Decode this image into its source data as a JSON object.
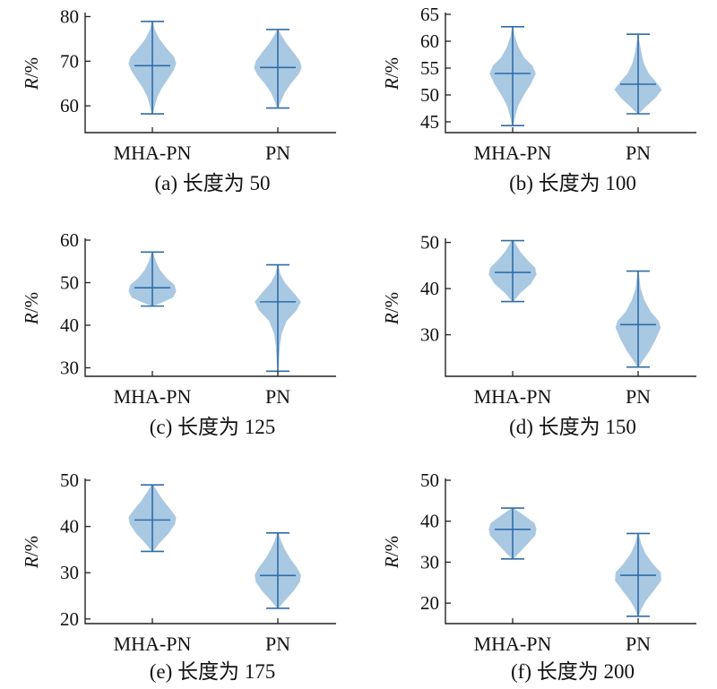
{
  "chart_data": [
    {
      "type": "violin",
      "caption": "(a) 长度为 50",
      "ylabel_italic": "R",
      "ylabel_rest": "/%",
      "categories": [
        "MHA-PN",
        "PN"
      ],
      "ylim": [
        54,
        80.5
      ],
      "yticks": [
        60,
        70,
        80
      ],
      "violins": [
        {
          "min": 58.2,
          "max": 78.9,
          "median": 69.0,
          "profile": [
            [
              58.2,
              0.02
            ],
            [
              60,
              0.1
            ],
            [
              62,
              0.2
            ],
            [
              64,
              0.38
            ],
            [
              66,
              0.62
            ],
            [
              68,
              0.85
            ],
            [
              69.5,
              0.95
            ],
            [
              71,
              0.86
            ],
            [
              73,
              0.55
            ],
            [
              75,
              0.28
            ],
            [
              77,
              0.1
            ],
            [
              78.9,
              0.02
            ]
          ]
        },
        {
          "min": 59.5,
          "max": 77.1,
          "median": 68.6,
          "profile": [
            [
              59.5,
              0.02
            ],
            [
              61,
              0.12
            ],
            [
              63,
              0.28
            ],
            [
              65,
              0.52
            ],
            [
              67,
              0.82
            ],
            [
              68.5,
              0.95
            ],
            [
              70,
              0.88
            ],
            [
              72,
              0.62
            ],
            [
              74,
              0.34
            ],
            [
              76,
              0.12
            ],
            [
              77.1,
              0.02
            ]
          ]
        }
      ]
    },
    {
      "type": "violin",
      "caption": "(b) 长度为 100",
      "ylabel_italic": "R",
      "ylabel_rest": "/%",
      "categories": [
        "MHA-PN",
        "PN"
      ],
      "ylim": [
        43,
        65
      ],
      "yticks": [
        45,
        50,
        55,
        60,
        65
      ],
      "violins": [
        {
          "min": 44.3,
          "max": 62.7,
          "median": 54.0,
          "profile": [
            [
              44.3,
              0.02
            ],
            [
              46,
              0.1
            ],
            [
              48,
              0.22
            ],
            [
              50,
              0.45
            ],
            [
              52,
              0.72
            ],
            [
              54,
              0.92
            ],
            [
              55.5,
              0.78
            ],
            [
              57,
              0.45
            ],
            [
              59,
              0.22
            ],
            [
              61,
              0.08
            ],
            [
              62.7,
              0.02
            ]
          ]
        },
        {
          "min": 46.5,
          "max": 61.3,
          "median": 52.0,
          "profile": [
            [
              46.5,
              0.02
            ],
            [
              48,
              0.35
            ],
            [
              49.5,
              0.7
            ],
            [
              51,
              0.95
            ],
            [
              52.5,
              0.7
            ],
            [
              54,
              0.42
            ],
            [
              56,
              0.22
            ],
            [
              58,
              0.12
            ],
            [
              60,
              0.05
            ],
            [
              61.3,
              0.02
            ]
          ]
        }
      ]
    },
    {
      "type": "violin",
      "caption": "(c) 长度为 125",
      "ylabel_italic": "R",
      "ylabel_rest": "/%",
      "categories": [
        "MHA-PN",
        "PN"
      ],
      "ylim": [
        28,
        60
      ],
      "yticks": [
        30,
        40,
        50,
        60
      ],
      "violins": [
        {
          "min": 44.5,
          "max": 57.2,
          "median": 48.8,
          "profile": [
            [
              44.5,
              0.02
            ],
            [
              45.5,
              0.45
            ],
            [
              46.5,
              0.82
            ],
            [
              48,
              0.95
            ],
            [
              49.5,
              0.88
            ],
            [
              51,
              0.58
            ],
            [
              53,
              0.3
            ],
            [
              55,
              0.14
            ],
            [
              57.2,
              0.02
            ]
          ]
        },
        {
          "min": 29.2,
          "max": 54.2,
          "median": 45.5,
          "profile": [
            [
              29.2,
              0.02
            ],
            [
              32,
              0.05
            ],
            [
              35,
              0.08
            ],
            [
              38,
              0.15
            ],
            [
              41,
              0.35
            ],
            [
              43.5,
              0.75
            ],
            [
              45.5,
              0.92
            ],
            [
              47.5,
              0.65
            ],
            [
              50,
              0.28
            ],
            [
              52,
              0.1
            ],
            [
              54.2,
              0.02
            ]
          ]
        }
      ]
    },
    {
      "type": "violin",
      "caption": "(d) 长度为 150",
      "ylabel_italic": "R",
      "ylabel_rest": "/%",
      "categories": [
        "MHA-PN",
        "PN"
      ],
      "ylim": [
        21,
        50.5
      ],
      "yticks": [
        30,
        40,
        50
      ],
      "violins": [
        {
          "min": 37.2,
          "max": 50.4,
          "median": 43.5,
          "profile": [
            [
              37.2,
              0.02
            ],
            [
              39,
              0.3
            ],
            [
              41,
              0.72
            ],
            [
              43,
              0.95
            ],
            [
              44.5,
              0.9
            ],
            [
              46,
              0.62
            ],
            [
              48,
              0.3
            ],
            [
              50.4,
              0.04
            ]
          ]
        },
        {
          "min": 23.0,
          "max": 43.8,
          "median": 32.2,
          "profile": [
            [
              23.0,
              0.02
            ],
            [
              24.5,
              0.2
            ],
            [
              26.5,
              0.45
            ],
            [
              29,
              0.7
            ],
            [
              31.5,
              0.9
            ],
            [
              33,
              0.82
            ],
            [
              35,
              0.5
            ],
            [
              37.5,
              0.25
            ],
            [
              40,
              0.1
            ],
            [
              43.8,
              0.02
            ]
          ]
        }
      ]
    },
    {
      "type": "violin",
      "caption": "(e) 长度为 175",
      "ylabel_italic": "R",
      "ylabel_rest": "/%",
      "categories": [
        "MHA-PN",
        "PN"
      ],
      "ylim": [
        19,
        50
      ],
      "yticks": [
        20,
        30,
        40,
        50
      ],
      "violins": [
        {
          "min": 34.6,
          "max": 49.0,
          "median": 41.4,
          "profile": [
            [
              34.6,
              0.02
            ],
            [
              36.5,
              0.3
            ],
            [
              38.5,
              0.65
            ],
            [
              40.5,
              0.9
            ],
            [
              42,
              0.95
            ],
            [
              43.5,
              0.75
            ],
            [
              45.5,
              0.45
            ],
            [
              47.5,
              0.2
            ],
            [
              49.0,
              0.04
            ]
          ]
        },
        {
          "min": 22.3,
          "max": 38.6,
          "median": 29.4,
          "profile": [
            [
              22.3,
              0.02
            ],
            [
              24,
              0.28
            ],
            [
              26,
              0.62
            ],
            [
              28,
              0.88
            ],
            [
              29.5,
              0.92
            ],
            [
              31,
              0.78
            ],
            [
              33,
              0.5
            ],
            [
              35,
              0.28
            ],
            [
              37,
              0.12
            ],
            [
              38.6,
              0.02
            ]
          ]
        }
      ]
    },
    {
      "type": "violin",
      "caption": "(f) 长度为 200",
      "ylabel_italic": "R",
      "ylabel_rest": "/%",
      "categories": [
        "MHA-PN",
        "PN"
      ],
      "ylim": [
        15,
        50
      ],
      "yticks": [
        20,
        30,
        40,
        50
      ],
      "violins": [
        {
          "min": 30.8,
          "max": 43.2,
          "median": 38.0,
          "profile": [
            [
              30.8,
              0.02
            ],
            [
              32.5,
              0.3
            ],
            [
              34.5,
              0.6
            ],
            [
              36.5,
              0.9
            ],
            [
              38,
              0.95
            ],
            [
              39.5,
              0.88
            ],
            [
              41,
              0.55
            ],
            [
              43.2,
              0.04
            ]
          ]
        },
        {
          "min": 16.8,
          "max": 37.0,
          "median": 26.8,
          "profile": [
            [
              16.8,
              0.02
            ],
            [
              18.5,
              0.12
            ],
            [
              20.5,
              0.3
            ],
            [
              23,
              0.62
            ],
            [
              25.5,
              0.92
            ],
            [
              27.5,
              0.9
            ],
            [
              29.5,
              0.6
            ],
            [
              32,
              0.3
            ],
            [
              34.5,
              0.12
            ],
            [
              37.0,
              0.02
            ]
          ]
        }
      ]
    }
  ]
}
